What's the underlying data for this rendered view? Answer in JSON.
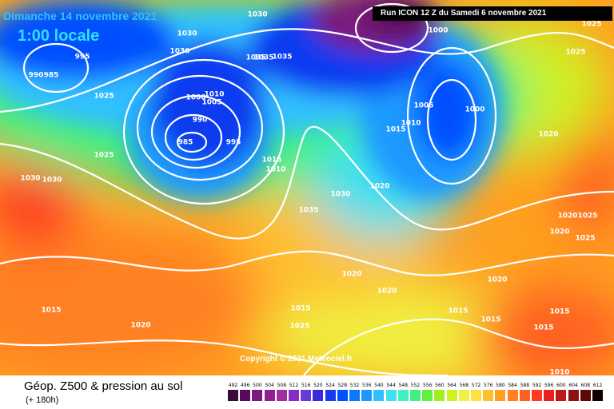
{
  "header": {
    "date": "Dimanche 14 novembre 2021",
    "time": "1:00 locale",
    "run": "Run ICON 12 Z du Samedi 6 novembre 2021"
  },
  "footer": {
    "title": "Géop. Z500 & pression au sol",
    "subtitle": "(+ 180h)",
    "copyright": "Copyright © 2021 Meteociel.fr"
  },
  "legend": {
    "values": [
      492,
      496,
      500,
      504,
      508,
      512,
      516,
      520,
      524,
      528,
      532,
      536,
      540,
      544,
      548,
      552,
      556,
      560,
      564,
      568,
      572,
      576,
      580,
      584,
      588,
      592,
      596,
      600,
      604,
      608,
      612
    ],
    "colors": [
      "#3a0a3a",
      "#5a0a5a",
      "#7a1a7a",
      "#902090",
      "#a030a0",
      "#8a2bc2",
      "#6a3ad8",
      "#3a2ae0",
      "#1a3af0",
      "#0050ff",
      "#0a78ff",
      "#1a9aff",
      "#30c0ff",
      "#40e0f0",
      "#40f0c0",
      "#40f080",
      "#60f040",
      "#a0f020",
      "#d0f020",
      "#f0f040",
      "#ffe040",
      "#ffc030",
      "#ffa020",
      "#ff8020",
      "#ff6020",
      "#ff3a20",
      "#e82020",
      "#c01818",
      "#901010",
      "#600808",
      "#100000"
    ]
  },
  "isobars": {
    "labels": [
      "1030",
      "1030",
      "1030",
      "1030",
      "995",
      "990",
      "985",
      "1025",
      "1000",
      "1005",
      "1010",
      "990",
      "985",
      "995",
      "1035",
      "1035",
      "1025",
      "1015",
      "1010",
      "1030",
      "1035",
      "1000",
      "1005",
      "1000",
      "1010",
      "1015",
      "1020",
      "1020",
      "1025",
      "1025",
      "1020",
      "1020",
      "1020",
      "1020",
      "1015",
      "1015",
      "1015",
      "1025",
      "1025",
      "1015",
      "1015",
      "1020",
      "1020",
      "1030",
      "1015",
      "1010",
      "1025",
      "1035"
    ]
  }
}
